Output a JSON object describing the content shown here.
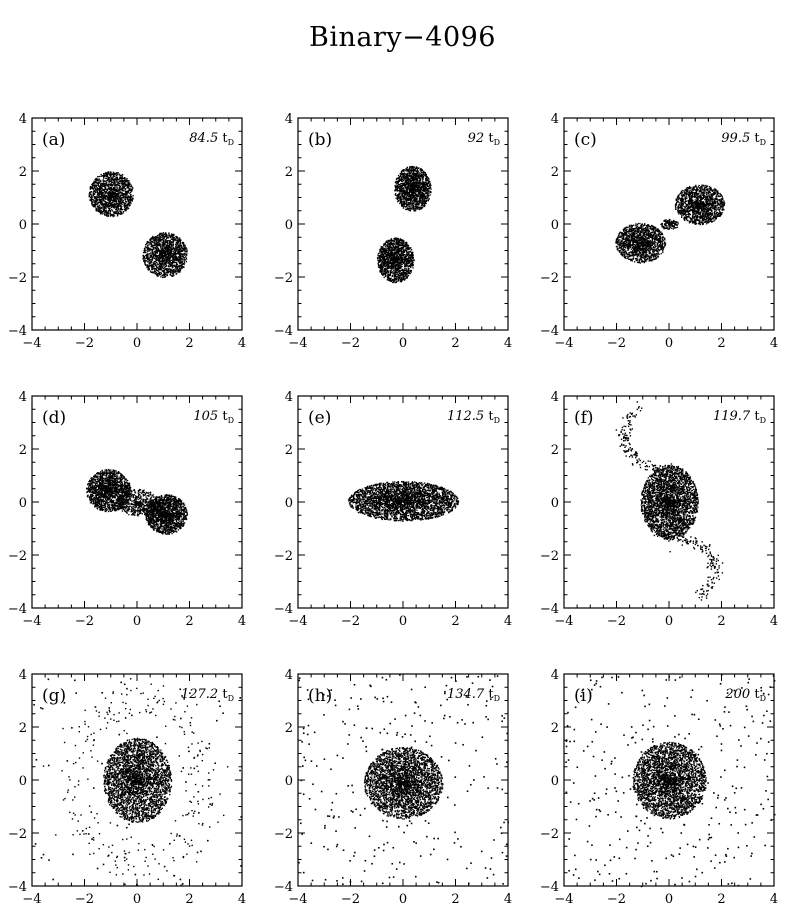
{
  "title": "Binary−4096",
  "chart_data": {
    "type": "scatter",
    "title": "Binary−4096",
    "xlim": [
      -4,
      4
    ],
    "ylim": [
      -4,
      4
    ],
    "xticks": [
      "−4",
      "−2",
      "0",
      "2",
      "4"
    ],
    "yticks": [
      "−4",
      "−2",
      "0",
      "2",
      "4"
    ],
    "time_unit": "t",
    "time_subscript": "D",
    "panels": [
      {
        "label": "(a)",
        "time": "84.5",
        "clumps": [
          {
            "x": -1.0,
            "y": 1.15,
            "rx": 0.85,
            "ry": 0.85,
            "n": 1400
          },
          {
            "x": 1.05,
            "y": -1.15,
            "rx": 0.85,
            "ry": 0.85,
            "n": 1400
          }
        ]
      },
      {
        "label": "(b)",
        "time": "92",
        "clumps": [
          {
            "x": 0.35,
            "y": 1.35,
            "rx": 0.7,
            "ry": 0.85,
            "n": 1400
          },
          {
            "x": -0.3,
            "y": -1.35,
            "rx": 0.7,
            "ry": 0.85,
            "n": 1400
          }
        ]
      },
      {
        "label": "(c)",
        "time": "99.5",
        "clumps": [
          {
            "x": 1.15,
            "y": 0.75,
            "rx": 0.95,
            "ry": 0.75,
            "n": 1400
          },
          {
            "x": -1.1,
            "y": -0.7,
            "rx": 0.95,
            "ry": 0.75,
            "n": 1400
          },
          {
            "x": 0.0,
            "y": 0.0,
            "rx": 0.35,
            "ry": 0.2,
            "n": 120
          }
        ]
      },
      {
        "label": "(d)",
        "time": "105",
        "clumps": [
          {
            "x": -1.1,
            "y": 0.45,
            "rx": 0.85,
            "ry": 0.8,
            "n": 1500
          },
          {
            "x": 1.1,
            "y": -0.45,
            "rx": 0.8,
            "ry": 0.75,
            "n": 1500
          },
          {
            "x": 0.0,
            "y": 0.0,
            "rx": 0.8,
            "ry": 0.5,
            "n": 500
          }
        ]
      },
      {
        "label": "(e)",
        "time": "112.5",
        "clumps": [
          {
            "x": 0.0,
            "y": 0.05,
            "rx": 2.1,
            "ry": 0.75,
            "n": 3000
          }
        ]
      },
      {
        "label": "(f)",
        "time": "119.7",
        "clumps": [
          {
            "x": 0.0,
            "y": 0.0,
            "rx": 1.1,
            "ry": 1.4,
            "n": 2800
          }
        ],
        "arms": [
          {
            "start": [
              0.5,
              1.2
            ],
            "cx": [
              -2.8,
              1.5
            ],
            "end": [
              -1.2,
              3.6
            ]
          },
          {
            "start": [
              -0.5,
              -1.2
            ],
            "cx": [
              2.8,
              -1.5
            ],
            "end": [
              1.2,
              -3.6
            ]
          }
        ]
      },
      {
        "label": "(g)",
        "time": "127.2",
        "clumps": [
          {
            "x": 0.0,
            "y": 0.0,
            "rx": 1.3,
            "ry": 1.6,
            "n": 3000
          }
        ],
        "ring": {
          "r": 2.5,
          "n": 260
        },
        "halo": 90
      },
      {
        "label": "(h)",
        "time": "134.7",
        "clumps": [
          {
            "x": 0.0,
            "y": -0.1,
            "rx": 1.5,
            "ry": 1.35,
            "n": 3000
          }
        ],
        "halo": 260
      },
      {
        "label": "(i)",
        "time": "200",
        "clumps": [
          {
            "x": 0.0,
            "y": 0.0,
            "rx": 1.4,
            "ry": 1.45,
            "n": 3000
          }
        ],
        "halo": 320
      }
    ]
  }
}
